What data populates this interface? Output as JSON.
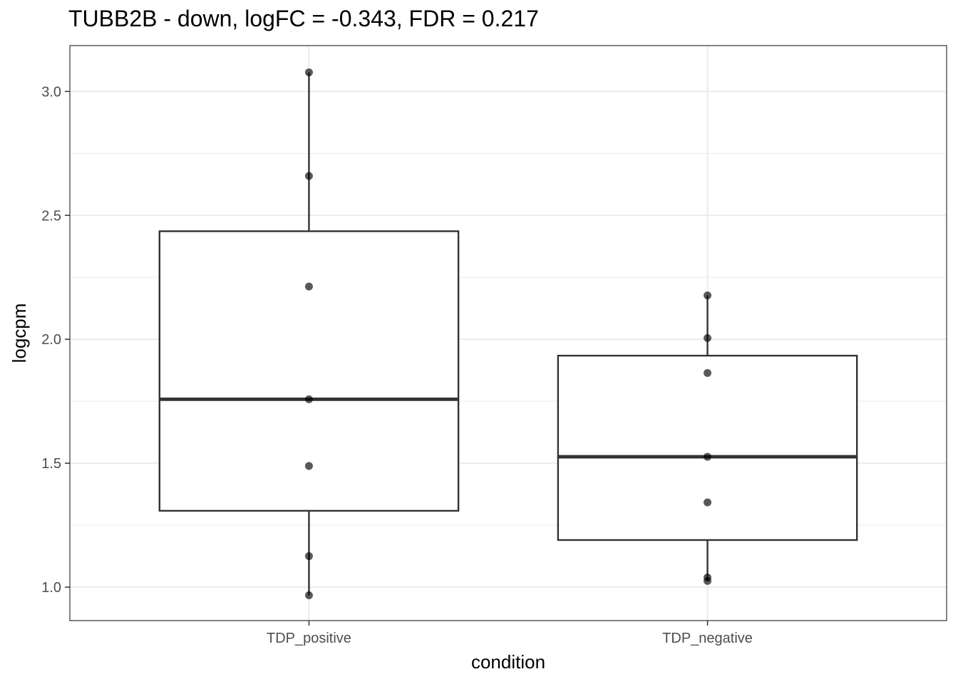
{
  "chart_data": {
    "type": "box",
    "title": "TUBB2B - down, logFC = -0.343, FDR = 0.217",
    "xlabel": "condition",
    "ylabel": "logcpm",
    "categories": [
      "TDP_positive",
      "TDP_negative"
    ],
    "ylim": [
      0.865,
      3.185
    ],
    "yticks": [
      1.0,
      1.5,
      2.0,
      2.5,
      3.0
    ],
    "ytick_labels": [
      "1.0",
      "1.5",
      "2.0",
      "2.5",
      "3.0"
    ],
    "grid": true,
    "boxes": [
      {
        "category": "TDP_positive",
        "whisker_low": 0.967,
        "q1": 1.308,
        "median": 1.758,
        "q3": 2.436,
        "whisker_high": 3.077,
        "points": [
          3.077,
          2.659,
          2.213,
          1.758,
          1.489,
          1.125,
          0.967
        ]
      },
      {
        "category": "TDP_negative",
        "whisker_low": 1.025,
        "q1": 1.19,
        "median": 1.526,
        "q3": 1.934,
        "whisker_high": 2.177,
        "points": [
          2.177,
          2.005,
          1.864,
          1.526,
          1.342,
          1.039,
          1.025
        ]
      }
    ],
    "colors": {
      "box_stroke": "#333333",
      "point": "#000000",
      "grid_major": "#ebebeb",
      "grid_minor": "#ebebeb",
      "panel_border": "#333333"
    }
  }
}
